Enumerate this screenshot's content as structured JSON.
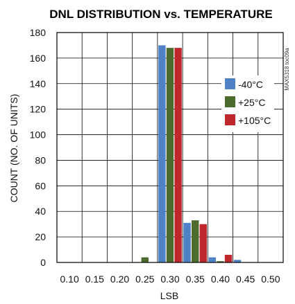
{
  "chart_data": {
    "type": "bar",
    "title": "DNL DISTRIBUTION vs. TEMPERATURE",
    "xlabel": "LSB",
    "ylabel": "COUNT (NO. OF UNITS)",
    "categories": [
      "0.10",
      "0.15",
      "0.20",
      "0.25",
      "0.30",
      "0.35",
      "0.40",
      "0.45",
      "0.50"
    ],
    "ylim": [
      0,
      180
    ],
    "yticks": [
      "0",
      "20",
      "40",
      "60",
      "80",
      "100",
      "120",
      "140",
      "160",
      "180"
    ],
    "grid": true,
    "legend_position": "right",
    "series": [
      {
        "name": "-40°C",
        "color": "#4f81c7",
        "values": [
          0,
          0,
          0,
          0,
          170,
          31,
          4,
          2,
          0
        ]
      },
      {
        "name": "+25°C",
        "color": "#4e6b2e",
        "values": [
          0,
          0,
          0,
          4,
          168,
          33,
          1,
          0,
          0
        ]
      },
      {
        "name": "+105°C",
        "color": "#c0272d",
        "values": [
          0,
          0,
          0,
          0,
          168,
          30,
          6,
          0,
          0
        ]
      }
    ],
    "annotation": "MAX5318 toc09a"
  }
}
